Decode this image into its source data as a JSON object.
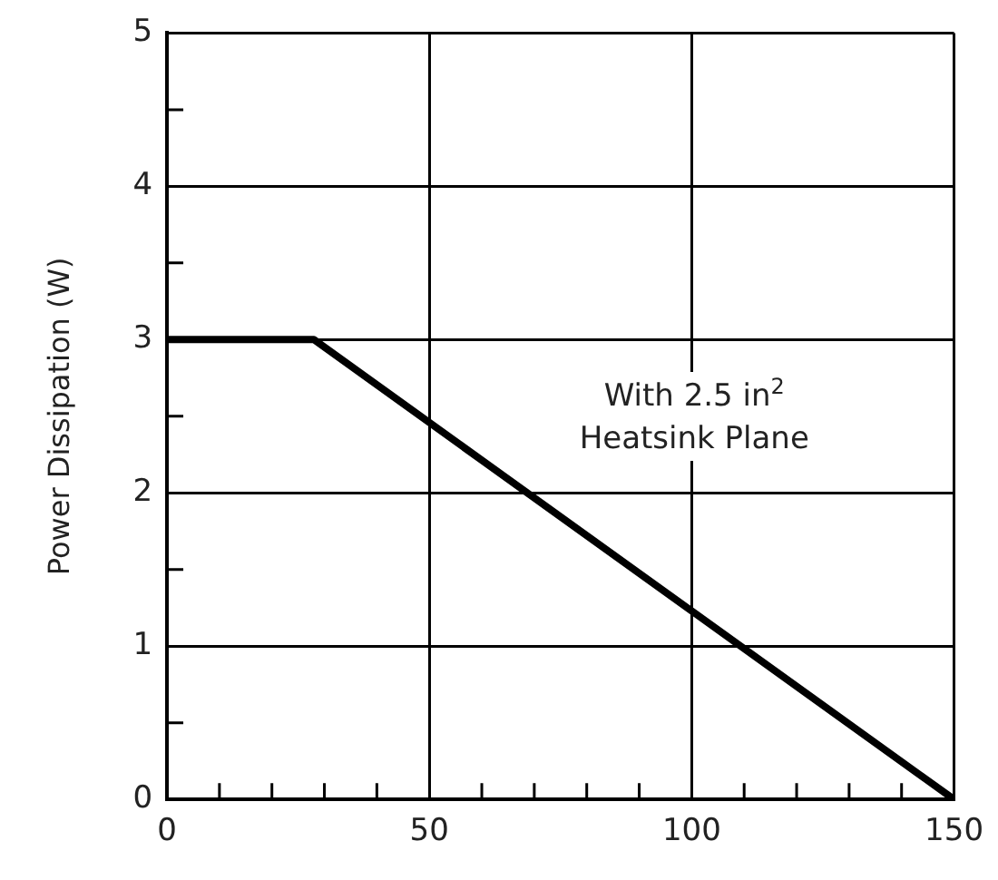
{
  "chart_data": {
    "type": "line",
    "ylabel": "Power Dissipation (W)",
    "x": [
      0,
      28,
      150
    ],
    "series": [
      {
        "color": "#000000",
        "values": [
          3,
          3,
          0
        ]
      }
    ],
    "xlim": [
      0,
      150
    ],
    "xticks": [
      0,
      {
        "value": 10,
        "label": null
      },
      {
        "value": 20,
        "label": null
      },
      {
        "value": 30,
        "label": null
      },
      {
        "value": 40,
        "label": null
      },
      50,
      {
        "value": 60,
        "label": null
      },
      {
        "value": 70,
        "label": null
      },
      {
        "value": 80,
        "label": null
      },
      {
        "value": 90,
        "label": null
      },
      100,
      {
        "value": 110,
        "label": null
      },
      {
        "value": 120,
        "label": null
      },
      {
        "value": 130,
        "label": null
      },
      {
        "value": 140,
        "label": null
      },
      150
    ],
    "ylim": [
      0,
      5
    ],
    "yticks": [
      0,
      {
        "value": 0.5,
        "label": null
      },
      1,
      {
        "value": 1.5,
        "label": null
      },
      2,
      {
        "value": 2.5,
        "label": null
      },
      3,
      {
        "value": 3.5,
        "label": null
      },
      4,
      {
        "value": 4.5,
        "label": null
      },
      5
    ],
    "grid": true,
    "legend": false,
    "marker": "none",
    "line_style": "solid",
    "annotations": [
      "With 2.5 in$^{2}$ Heatsink Plane"
    ]
  }
}
